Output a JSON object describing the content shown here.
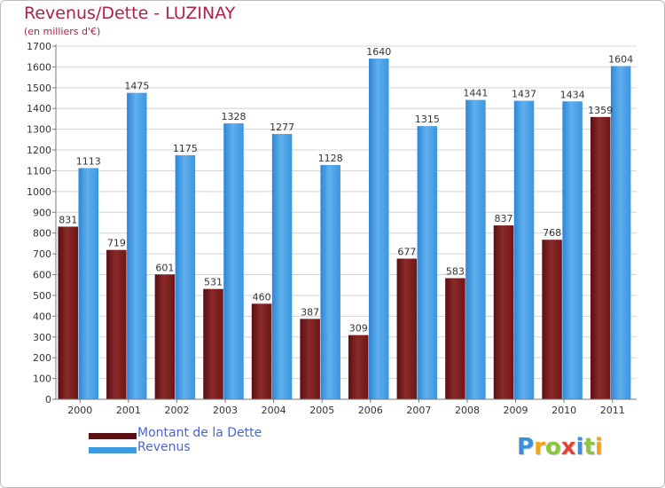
{
  "title": "Revenus/Dette - LUZINAY",
  "subtitle": "(en milliers d'€)",
  "colors": {
    "title": "#b02048",
    "legend_text": "#4a63d8",
    "debt": "#7a1c1c",
    "revenue": "#3d9ae4"
  },
  "legend": [
    {
      "label": "Montant de la Dette",
      "color": "#7a1c1c"
    },
    {
      "label": "Revenus",
      "color": "#3d9ae4"
    }
  ],
  "logo": {
    "letters": [
      "P",
      "r",
      "o",
      "x",
      "i",
      "t",
      "i"
    ],
    "colors": [
      "#3a8fd8",
      "#f2a51c",
      "#8cc63f",
      "#e2443a",
      "#3a8fd8",
      "#8cc63f",
      "#f2a51c"
    ]
  },
  "chart_data": {
    "type": "bar",
    "title": "Revenus/Dette - LUZINAY",
    "subtitle": "(en milliers d'€)",
    "categories": [
      "2000",
      "2001",
      "2002",
      "2003",
      "2004",
      "2005",
      "2006",
      "2007",
      "2008",
      "2009",
      "2010",
      "2011"
    ],
    "series": [
      {
        "name": "Montant de la Dette",
        "values": [
          831,
          719,
          601,
          531,
          460,
          387,
          309,
          677,
          583,
          837,
          768,
          1359
        ]
      },
      {
        "name": "Revenus",
        "values": [
          1113,
          1475,
          1175,
          1328,
          1277,
          1128,
          1640,
          1315,
          1441,
          1437,
          1434,
          1604
        ]
      }
    ],
    "ylim": [
      0,
      1700
    ],
    "yticks": [
      0,
      100,
      200,
      300,
      400,
      500,
      600,
      700,
      800,
      900,
      1000,
      1100,
      1200,
      1300,
      1400,
      1500,
      1600,
      1700
    ],
    "grid": true,
    "legend_position": "bottom-left"
  }
}
